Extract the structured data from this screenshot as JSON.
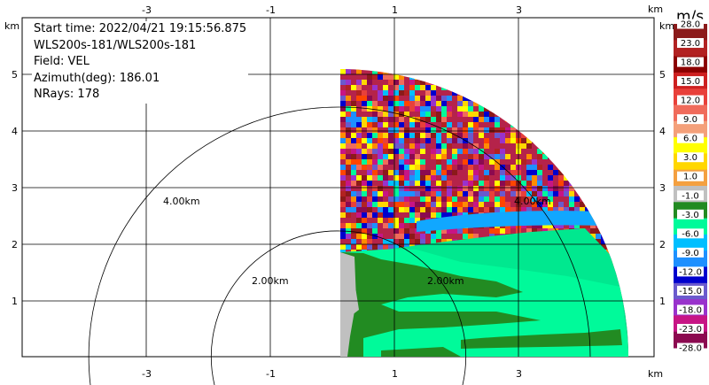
{
  "info": {
    "start_time": "Start time: 2022/04/21 19:15:56.875",
    "instrument": "WLS200s-181/WLS200s-181",
    "field": "Field: VEL",
    "azimuth": "Azimuth(deg): 186.01",
    "nrays": "NRays: 178"
  },
  "axes": {
    "x_unit": "km",
    "y_unit": "km",
    "x_ticks": [
      "-3",
      "-1",
      "1",
      "3"
    ],
    "y_ticks": [
      "5",
      "4",
      "3",
      "2",
      "1"
    ]
  },
  "range_rings": [
    "4.00km",
    "2.00km",
    "2.00km",
    "4.00km"
  ],
  "colorbar": {
    "title": "m/s",
    "labels": [
      "28.0",
      "23.0",
      "18.0",
      "15.0",
      "12.0",
      "9.0",
      "6.0",
      "3.0",
      "1.0",
      "-1.0",
      "-3.0",
      "-6.0",
      "-9.0",
      "-12.0",
      "-15.0",
      "-18.0",
      "-23.0",
      "-28.0"
    ],
    "colors": [
      "#8b1a1a",
      "#b22222",
      "#8b0000",
      "#cd2020",
      "#e8403a",
      "#f06b5b",
      "#f4a07a",
      "#ffff00",
      "#ffd700",
      "#f4a040",
      "#c0c0c0",
      "#228b22",
      "#00fa9a",
      "#00bfff",
      "#1e90ff",
      "#0000cd",
      "#6a5acd",
      "#9932cc",
      "#c71585",
      "#8b0a50"
    ]
  }
}
